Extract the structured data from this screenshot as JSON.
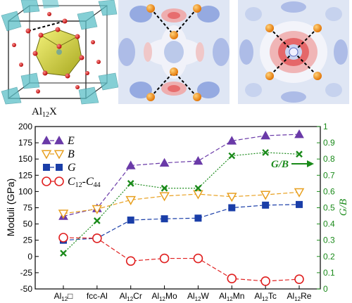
{
  "panels": {
    "caption": "Al",
    "caption_sub": "12",
    "caption_suffix": "X"
  },
  "chart_data": {
    "type": "line",
    "categories": [
      "Al12□",
      "fcc-Al",
      "Al12Cr",
      "Al12Mo",
      "Al12W",
      "Al12Mn",
      "Al12Tc",
      "Al12Re"
    ],
    "category_parts": [
      {
        "base": "Al",
        "sub": "12",
        "rest": "□"
      },
      {
        "base": "fcc-Al",
        "sub": "",
        "rest": ""
      },
      {
        "base": "Al",
        "sub": "12",
        "rest": "Cr"
      },
      {
        "base": "Al",
        "sub": "12",
        "rest": "Mo"
      },
      {
        "base": "Al",
        "sub": "12",
        "rest": "W"
      },
      {
        "base": "Al",
        "sub": "12",
        "rest": "Mn"
      },
      {
        "base": "Al",
        "sub": "12",
        "rest": "Tc"
      },
      {
        "base": "Al",
        "sub": "12",
        "rest": "Re"
      }
    ],
    "ylabel": "Moduli (GPa)",
    "y2label": "G/B",
    "ylim": [
      -50,
      200
    ],
    "yticks": [
      -50,
      -25,
      0,
      25,
      50,
      75,
      100,
      125,
      150,
      175,
      200
    ],
    "y2lim": [
      0,
      1.0
    ],
    "y2ticks": [
      0,
      0.1,
      0.2,
      0.3,
      0.4,
      0.5,
      0.6,
      0.7,
      0.8,
      0.9,
      1.0
    ],
    "y2tick_labels": [
      "0",
      "0.1",
      "0.2",
      "0.3",
      "0.4",
      "0.5",
      "0.6",
      "0.7",
      "0.8",
      "0.9",
      "1"
    ],
    "series": [
      {
        "name": "E",
        "axis": "left",
        "values": [
          62,
          74,
          140,
          144,
          147,
          178,
          186,
          188
        ],
        "color": "#6a3aa8",
        "marker": "triangle-up",
        "line": "dashed"
      },
      {
        "name": "B",
        "axis": "left",
        "values": [
          66,
          73,
          87,
          93,
          96,
          92,
          95,
          99
        ],
        "color": "#e8a020",
        "marker": "triangle-down-open",
        "line": "dashed"
      },
      {
        "name": "G",
        "axis": "left",
        "values": [
          25,
          28,
          56,
          58,
          59,
          75,
          79,
          80
        ],
        "color": "#1a3ea8",
        "marker": "square",
        "line": "dashed"
      },
      {
        "name": "C12-C44",
        "name_parts": {
          "a": "C",
          "a_sub": "12",
          "mid": "-",
          "b": "C",
          "b_sub": "44"
        },
        "axis": "left",
        "values": [
          29,
          28,
          -7,
          -3,
          -3,
          -34,
          -38,
          -35
        ],
        "color": "#e02020",
        "marker": "circle-open",
        "line": "dashed"
      },
      {
        "name": "G/B",
        "axis": "right",
        "values": [
          0.22,
          0.42,
          0.65,
          0.62,
          0.62,
          0.82,
          0.84,
          0.83
        ],
        "color": "#1a8a1a",
        "marker": "x",
        "line": "dotted"
      }
    ],
    "annotation": {
      "text": "G/B"
    },
    "legend": "top-left",
    "grid": false
  }
}
